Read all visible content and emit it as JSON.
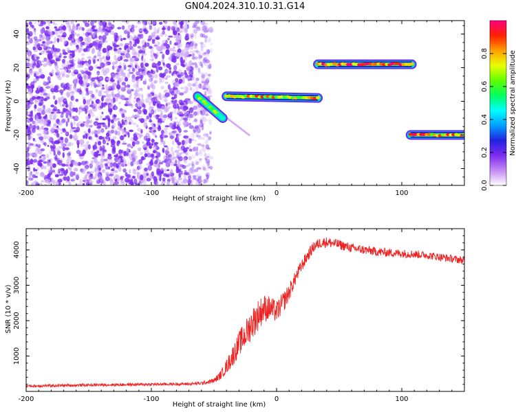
{
  "title": "GN04.2024.310.10.31.G14",
  "colors": {
    "background_noise": "#7b2cf0",
    "snr_line": "#ee2222",
    "segment_outline": "#0a0a9a"
  },
  "colorbar": {
    "label": "Normalized spectral amplitude",
    "range": [
      0.0,
      1.0
    ],
    "ticks": [
      "0.0",
      "0.2",
      "0.4",
      "0.6",
      "0.8"
    ],
    "tick_values": [
      0.0,
      0.2,
      0.4,
      0.6,
      0.8
    ],
    "colormap": [
      "#ffffff",
      "#c58af4",
      "#7b2cf0",
      "#2222e0",
      "#00a0ff",
      "#00ffff",
      "#00ff60",
      "#60ff00",
      "#e8ff00",
      "#ffa000",
      "#ff2000",
      "#ff0080"
    ]
  },
  "chart_data": [
    {
      "type": "heatmap",
      "title": "GN04.2024.310.10.31.G14",
      "xlabel": "Height of straight line (km)",
      "ylabel": "Frequency (Hz)",
      "xlim": [
        -200,
        150
      ],
      "ylim": [
        -50,
        48
      ],
      "x_ticks": [
        -200,
        -100,
        0,
        100
      ],
      "x_tick_labels": [
        "-200",
        "-100",
        "0",
        "100"
      ],
      "y_ticks": [
        -40,
        -20,
        0,
        20,
        40
      ],
      "y_tick_labels": [
        "-40",
        "-20",
        "0",
        "20",
        "40"
      ],
      "noise_region": {
        "x_range": [
          -200,
          -58
        ],
        "y_range": [
          -50,
          48
        ],
        "amplitude": 0.3
      },
      "segments": [
        {
          "x": [
            -63,
            -43
          ],
          "y": [
            3,
            -10
          ],
          "amplitude": 0.55
        },
        {
          "x": [
            -40,
            33
          ],
          "y": [
            3,
            2
          ],
          "amplitude": 0.75
        },
        {
          "x": [
            33,
            108
          ],
          "y": [
            22,
            22
          ],
          "amplitude": 0.85
        },
        {
          "x": [
            107,
            150
          ],
          "y": [
            -20,
            -20
          ],
          "amplitude": 0.8
        }
      ],
      "faint_tail": {
        "x": [
          -43,
          -22
        ],
        "y": [
          -8,
          -20
        ],
        "amplitude": 0.25
      }
    },
    {
      "type": "line",
      "xlabel": "Height of straight line (km)",
      "ylabel": "SNR (10 * v/v)",
      "xlim": [
        -200,
        150
      ],
      "ylim": [
        0,
        4600
      ],
      "x_ticks": [
        -200,
        -100,
        0,
        100
      ],
      "x_tick_labels": [
        "-200",
        "-100",
        "0",
        "100"
      ],
      "y_ticks": [
        1000,
        2000,
        3000,
        4000
      ],
      "y_tick_labels": [
        "1000",
        "2000",
        "3000",
        "4000"
      ],
      "series": [
        {
          "x": [
            -200,
            -150,
            -100,
            -70,
            -60,
            -50,
            -45,
            -40,
            -35,
            -30,
            -25,
            -20,
            -15,
            -10,
            -5,
            0,
            5,
            10,
            15,
            20,
            25,
            30,
            35,
            40,
            50,
            60,
            70,
            80,
            90,
            100,
            110,
            120,
            130,
            140,
            150
          ],
          "y": [
            150,
            180,
            200,
            210,
            230,
            300,
            450,
            700,
            1000,
            1350,
            1600,
            1900,
            2150,
            2350,
            2350,
            2250,
            2500,
            2800,
            3200,
            3550,
            3850,
            4100,
            4200,
            4220,
            4150,
            4050,
            4000,
            3950,
            3920,
            3900,
            3880,
            3850,
            3800,
            3750,
            3700
          ],
          "noise": [
            40,
            40,
            40,
            40,
            50,
            70,
            120,
            200,
            300,
            350,
            400,
            450,
            450,
            400,
            350,
            300,
            300,
            250,
            200,
            180,
            170,
            160,
            150,
            150,
            140,
            130,
            130,
            130,
            120,
            120,
            120,
            110,
            110,
            110,
            110
          ]
        }
      ]
    }
  ]
}
